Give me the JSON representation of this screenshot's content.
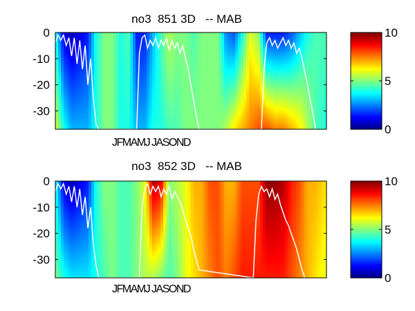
{
  "chart_data": [
    {
      "type": "heatmap",
      "title": "no3  851 3D   -- MAB",
      "xlabel": "JFMAMJ JASOND",
      "ylabel": "",
      "ylim": [
        -37,
        0
      ],
      "yticks": [
        0,
        -10,
        -20,
        -30
      ],
      "colorbar": {
        "range": [
          0,
          10
        ],
        "ticks": [
          0,
          5,
          10
        ],
        "colormap": "jet"
      },
      "columns": [
        {
          "t": 0.0,
          "top": 4,
          "bottom": 6
        },
        {
          "t": 0.03,
          "top": 1,
          "bottom": 4
        },
        {
          "t": 0.06,
          "top": 0.5,
          "bottom": 3
        },
        {
          "t": 0.09,
          "top": 1,
          "bottom": 3
        },
        {
          "t": 0.12,
          "top": 1.5,
          "bottom": 3
        },
        {
          "t": 0.15,
          "top": 4,
          "bottom": 4
        },
        {
          "t": 0.18,
          "top": 5,
          "bottom": 5
        },
        {
          "t": 0.21,
          "top": 5,
          "bottom": 5
        },
        {
          "t": 0.24,
          "top": 4,
          "bottom": 4
        },
        {
          "t": 0.27,
          "top": 4.5,
          "bottom": 4
        },
        {
          "t": 0.3,
          "top": 1.5,
          "bottom": 3
        },
        {
          "t": 0.33,
          "top": 1.5,
          "bottom": 3
        },
        {
          "t": 0.36,
          "top": 3,
          "bottom": 4
        },
        {
          "t": 0.39,
          "top": 4.5,
          "bottom": 4
        },
        {
          "t": 0.42,
          "top": 5.5,
          "bottom": 4.5
        },
        {
          "t": 0.45,
          "top": 5,
          "bottom": 4.5
        },
        {
          "t": 0.48,
          "top": 5,
          "bottom": 5
        },
        {
          "t": 0.51,
          "top": 4.5,
          "bottom": 5
        },
        {
          "t": 0.54,
          "top": 5,
          "bottom": 5
        },
        {
          "t": 0.57,
          "top": 5,
          "bottom": 5
        },
        {
          "t": 0.6,
          "top": 5,
          "bottom": 5
        },
        {
          "t": 0.63,
          "top": 2.5,
          "bottom": 5.5
        },
        {
          "t": 0.66,
          "top": 2,
          "bottom": 6.5
        },
        {
          "t": 0.69,
          "top": 4,
          "bottom": 7
        },
        {
          "t": 0.72,
          "top": 6,
          "bottom": 7.5
        },
        {
          "t": 0.75,
          "top": 5,
          "bottom": 8
        },
        {
          "t": 0.78,
          "top": 1.5,
          "bottom": 8
        },
        {
          "t": 0.81,
          "top": 1.5,
          "bottom": 7.5
        },
        {
          "t": 0.84,
          "top": 1.5,
          "bottom": 7.5
        },
        {
          "t": 0.87,
          "top": 2,
          "bottom": 7
        },
        {
          "t": 0.9,
          "top": 3,
          "bottom": 6.5
        },
        {
          "t": 0.93,
          "top": 4,
          "bottom": 5.5
        },
        {
          "t": 0.96,
          "top": 4.5,
          "bottom": 4.5
        },
        {
          "t": 1.0,
          "top": 4.5,
          "bottom": 4
        }
      ],
      "white_line": [
        [
          0.0,
          -4
        ],
        [
          0.01,
          -1
        ],
        [
          0.02,
          -3
        ],
        [
          0.03,
          -1
        ],
        [
          0.04,
          -5
        ],
        [
          0.05,
          -2
        ],
        [
          0.06,
          -9
        ],
        [
          0.07,
          -2
        ],
        [
          0.08,
          -12
        ],
        [
          0.09,
          -3
        ],
        [
          0.1,
          -14
        ],
        [
          0.11,
          -5
        ],
        [
          0.12,
          -20
        ],
        [
          0.13,
          -10
        ],
        [
          0.14,
          -25
        ],
        [
          0.15,
          -35
        ],
        [
          0.16,
          -37
        ],
        [
          0.3,
          -37
        ],
        [
          0.31,
          -8
        ],
        [
          0.32,
          -2
        ],
        [
          0.33,
          -1
        ],
        [
          0.34,
          -6
        ],
        [
          0.35,
          -3
        ],
        [
          0.36,
          -5
        ],
        [
          0.37,
          -2
        ],
        [
          0.38,
          -6
        ],
        [
          0.39,
          -3
        ],
        [
          0.4,
          -5
        ],
        [
          0.41,
          -2
        ],
        [
          0.42,
          -7
        ],
        [
          0.43,
          -3
        ],
        [
          0.44,
          -6
        ],
        [
          0.45,
          -4
        ],
        [
          0.46,
          -8
        ],
        [
          0.47,
          -5
        ],
        [
          0.48,
          -10
        ],
        [
          0.49,
          -14
        ],
        [
          0.5,
          -20
        ],
        [
          0.51,
          -26
        ],
        [
          0.52,
          -32
        ],
        [
          0.53,
          -37
        ],
        [
          0.76,
          -37
        ],
        [
          0.77,
          -14
        ],
        [
          0.78,
          -4
        ],
        [
          0.79,
          -2
        ],
        [
          0.8,
          -5
        ],
        [
          0.81,
          -3
        ],
        [
          0.82,
          -6
        ],
        [
          0.83,
          -4
        ],
        [
          0.84,
          -2
        ],
        [
          0.85,
          -5
        ],
        [
          0.86,
          -3
        ],
        [
          0.87,
          -6
        ],
        [
          0.88,
          -4
        ],
        [
          0.89,
          -8
        ],
        [
          0.9,
          -6
        ],
        [
          0.91,
          -10
        ],
        [
          0.92,
          -15
        ],
        [
          0.93,
          -20
        ],
        [
          0.94,
          -26
        ],
        [
          0.95,
          -31
        ],
        [
          0.96,
          -37
        ]
      ]
    },
    {
      "type": "heatmap",
      "title": "no3  852 3D   -- MAB",
      "xlabel": "JFMAMJ JASOND",
      "ylabel": "",
      "ylim": [
        -37,
        0
      ],
      "yticks": [
        0,
        -10,
        -20,
        -30
      ],
      "colorbar": {
        "range": [
          0,
          10
        ],
        "ticks": [
          0,
          5,
          10
        ],
        "colormap": "jet"
      },
      "columns": [
        {
          "t": 0.0,
          "top": 4,
          "bottom": 5
        },
        {
          "t": 0.03,
          "top": 1,
          "bottom": 4
        },
        {
          "t": 0.06,
          "top": 0.5,
          "bottom": 3.5
        },
        {
          "t": 0.09,
          "top": 1,
          "bottom": 3.5
        },
        {
          "t": 0.12,
          "top": 1.5,
          "bottom": 3.5
        },
        {
          "t": 0.15,
          "top": 4,
          "bottom": 4
        },
        {
          "t": 0.18,
          "top": 5,
          "bottom": 4.5
        },
        {
          "t": 0.21,
          "top": 5,
          "bottom": 5
        },
        {
          "t": 0.24,
          "top": 4.5,
          "bottom": 4.5
        },
        {
          "t": 0.27,
          "top": 4.5,
          "bottom": 4.5
        },
        {
          "t": 0.3,
          "top": 5,
          "bottom": 5
        },
        {
          "t": 0.33,
          "top": 6,
          "bottom": 5.5
        },
        {
          "t": 0.36,
          "top": 9.5,
          "bottom": 5.5
        },
        {
          "t": 0.39,
          "top": 9,
          "bottom": 5
        },
        {
          "t": 0.42,
          "top": 5,
          "bottom": 4.5
        },
        {
          "t": 0.45,
          "top": 5.5,
          "bottom": 5
        },
        {
          "t": 0.48,
          "top": 6,
          "bottom": 6
        },
        {
          "t": 0.51,
          "top": 7,
          "bottom": 6.5
        },
        {
          "t": 0.54,
          "top": 7,
          "bottom": 7
        },
        {
          "t": 0.57,
          "top": 8,
          "bottom": 7.5
        },
        {
          "t": 0.6,
          "top": 8,
          "bottom": 8
        },
        {
          "t": 0.63,
          "top": 7,
          "bottom": 7.5
        },
        {
          "t": 0.66,
          "top": 7,
          "bottom": 8
        },
        {
          "t": 0.69,
          "top": 8,
          "bottom": 8.5
        },
        {
          "t": 0.72,
          "top": 8,
          "bottom": 8.5
        },
        {
          "t": 0.75,
          "top": 8,
          "bottom": 8.5
        },
        {
          "t": 0.78,
          "top": 9.8,
          "bottom": 8.5
        },
        {
          "t": 0.81,
          "top": 9.8,
          "bottom": 8.5
        },
        {
          "t": 0.84,
          "top": 9.5,
          "bottom": 8.5
        },
        {
          "t": 0.87,
          "top": 8.5,
          "bottom": 8
        },
        {
          "t": 0.9,
          "top": 8,
          "bottom": 7.5
        },
        {
          "t": 0.93,
          "top": 7,
          "bottom": 7
        },
        {
          "t": 0.96,
          "top": 7,
          "bottom": 6.5
        },
        {
          "t": 1.0,
          "top": 6.5,
          "bottom": 6
        }
      ],
      "white_line": [
        [
          0.0,
          -4
        ],
        [
          0.01,
          -1
        ],
        [
          0.02,
          -3
        ],
        [
          0.03,
          -1
        ],
        [
          0.04,
          -5
        ],
        [
          0.05,
          -2
        ],
        [
          0.06,
          -8
        ],
        [
          0.07,
          -2
        ],
        [
          0.08,
          -10
        ],
        [
          0.09,
          -3
        ],
        [
          0.1,
          -13
        ],
        [
          0.11,
          -6
        ],
        [
          0.12,
          -18
        ],
        [
          0.13,
          -10
        ],
        [
          0.14,
          -24
        ],
        [
          0.15,
          -32
        ],
        [
          0.16,
          -37
        ],
        [
          0.31,
          -37
        ],
        [
          0.32,
          -10
        ],
        [
          0.33,
          -3
        ],
        [
          0.34,
          -1
        ],
        [
          0.35,
          -5
        ],
        [
          0.36,
          -2
        ],
        [
          0.37,
          -4
        ],
        [
          0.38,
          -2
        ],
        [
          0.39,
          -6
        ],
        [
          0.4,
          -3
        ],
        [
          0.41,
          -5
        ],
        [
          0.42,
          -2
        ],
        [
          0.43,
          -7
        ],
        [
          0.44,
          -4
        ],
        [
          0.45,
          -6
        ],
        [
          0.46,
          -8
        ],
        [
          0.47,
          -11
        ],
        [
          0.48,
          -15
        ],
        [
          0.49,
          -18
        ],
        [
          0.5,
          -21
        ],
        [
          0.51,
          -26
        ],
        [
          0.52,
          -30
        ],
        [
          0.53,
          -34
        ],
        [
          0.73,
          -37
        ],
        [
          0.74,
          -15
        ],
        [
          0.75,
          -5
        ],
        [
          0.76,
          -2
        ],
        [
          0.77,
          -4
        ],
        [
          0.78,
          -3
        ],
        [
          0.79,
          -6
        ],
        [
          0.8,
          -3
        ],
        [
          0.81,
          -7
        ],
        [
          0.82,
          -5
        ],
        [
          0.83,
          -9
        ],
        [
          0.84,
          -12
        ],
        [
          0.85,
          -15
        ],
        [
          0.86,
          -17
        ],
        [
          0.87,
          -20
        ],
        [
          0.88,
          -23
        ],
        [
          0.89,
          -26
        ],
        [
          0.9,
          -30
        ],
        [
          0.91,
          -34
        ],
        [
          0.92,
          -37
        ]
      ]
    }
  ]
}
